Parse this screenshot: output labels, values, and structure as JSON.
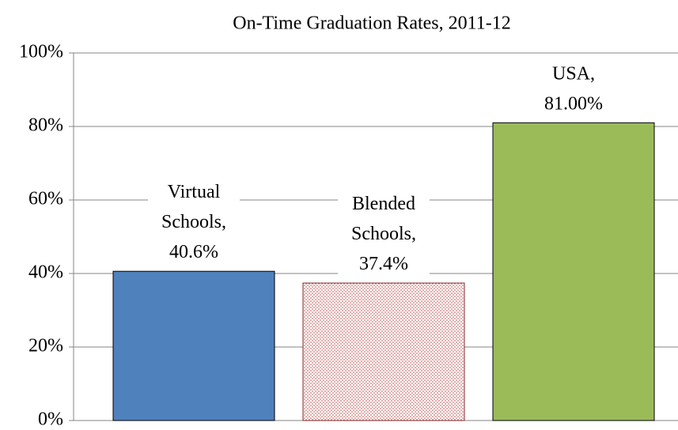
{
  "chart_data": {
    "type": "bar",
    "title": "On-Time Graduation Rates, 2011-12",
    "values": [
      40.6,
      37.4,
      81.0
    ],
    "value_labels": [
      "Virtual Schools, 40.6%",
      "Blended Schools, 37.4%",
      "USA, 81.00%"
    ],
    "colors": [
      "#4f81bd",
      "#c0504d",
      "#9bbb59"
    ],
    "fill_styles": [
      "solid",
      "dotted",
      "solid"
    ],
    "ylim": [
      0,
      100
    ],
    "yticks": [
      {
        "value": 0,
        "label": "0%"
      },
      {
        "value": 20,
        "label": "20%"
      },
      {
        "value": 40,
        "label": "40%"
      },
      {
        "value": 60,
        "label": "60%"
      },
      {
        "value": 80,
        "label": "80%"
      },
      {
        "value": 100,
        "label": "100%"
      }
    ],
    "grid": true
  }
}
